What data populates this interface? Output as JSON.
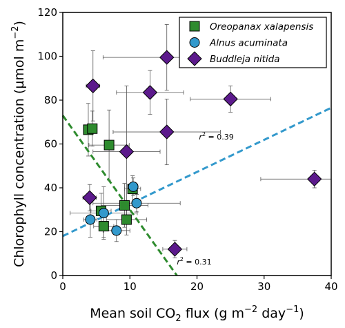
{
  "chart_data": {
    "type": "scatter",
    "xlabel_main": "Mean soil CO",
    "xlabel_sub": "2",
    "xlabel_unit_a": " flux (g m",
    "xlabel_sup_a": "−2",
    "xlabel_unit_b": " day",
    "xlabel_sup_b": "−1",
    "xlabel_close": ")",
    "ylabel": "Chlorophyll  concentration (µmol m",
    "ylabel_sup": "−2",
    "ylabel_close": ")",
    "xlim": [
      0,
      40
    ],
    "ylim": [
      0,
      120
    ],
    "xticks": [
      0,
      10,
      20,
      30,
      40
    ],
    "yticks": [
      0,
      20,
      40,
      60,
      80,
      100,
      120
    ],
    "legend_placement": "top-right",
    "series": [
      {
        "name": "Oreopanax xalapensis",
        "marker": "square",
        "color": "#2e8b2e",
        "points": [
          {
            "x": 3.8,
            "y": 66.5,
            "xerr": 0.6,
            "yerr": 12
          },
          {
            "x": 4.4,
            "y": 67,
            "xerr": 0.5,
            "yerr": 8
          },
          {
            "x": 6.9,
            "y": 59.5,
            "xerr": 3,
            "yerr": 16
          },
          {
            "x": 10.4,
            "y": 39.5,
            "xerr": 1.2,
            "yerr": 6
          },
          {
            "x": 9.2,
            "y": 32,
            "xerr": 3.5,
            "yerr": 10
          },
          {
            "x": 5.7,
            "y": 29.5,
            "xerr": 1.5,
            "yerr": 8
          },
          {
            "x": 9.5,
            "y": 25.5,
            "xerr": 3,
            "yerr": 7
          },
          {
            "x": 6.1,
            "y": 22.5,
            "xerr": 1.5,
            "yerr": 5
          }
        ]
      },
      {
        "name": "Alnus acuminata",
        "marker": "circle",
        "color": "#3399cc",
        "points": [
          {
            "x": 10.5,
            "y": 40.5,
            "xerr": 0.5,
            "yerr": 4
          },
          {
            "x": 11,
            "y": 33,
            "xerr": 6.5,
            "yerr": 4
          },
          {
            "x": 6.1,
            "y": 28.5,
            "xerr": 5,
            "yerr": 12
          },
          {
            "x": 4.1,
            "y": 25.5,
            "xerr": 1,
            "yerr": 8
          },
          {
            "x": 8,
            "y": 20.5,
            "xerr": 2,
            "yerr": 5
          }
        ]
      },
      {
        "name": "Buddleja nitida",
        "marker": "diamond",
        "color": "#5c1a8c",
        "points": [
          {
            "x": 15.5,
            "y": 99.5,
            "xerr": 9.5,
            "yerr": 15
          },
          {
            "x": 4.5,
            "y": 86.5,
            "xerr": 1,
            "yerr": 16
          },
          {
            "x": 13,
            "y": 83.5,
            "xerr": 5,
            "yerr": 10
          },
          {
            "x": 25,
            "y": 80.5,
            "xerr": 6,
            "yerr": 6
          },
          {
            "x": 15.5,
            "y": 65.5,
            "xerr": 8,
            "yerr": 15
          },
          {
            "x": 9.5,
            "y": 56.5,
            "xerr": 5,
            "yerr": 30
          },
          {
            "x": 37.5,
            "y": 44,
            "xerr": 8,
            "yerr": 4
          },
          {
            "x": 4,
            "y": 35.5,
            "xerr": 1,
            "yerr": 6
          },
          {
            "x": 16.7,
            "y": 12,
            "xerr": 1.8,
            "yerr": 4
          }
        ]
      }
    ],
    "regressions": [
      {
        "color": "#2e8b2e",
        "x": [
          0,
          17
        ],
        "y": [
          73,
          0
        ],
        "label_prefix": "r",
        "label_sup": "2",
        "label_value": " = 0.31",
        "label_x": 17,
        "label_y": 5
      },
      {
        "color": "#3399cc",
        "x": [
          0,
          40
        ],
        "y": [
          18,
          76.5
        ],
        "label_prefix": "r",
        "label_sup": "2",
        "label_value": " = 0.39",
        "label_x": 20.3,
        "label_y": 62
      }
    ]
  }
}
